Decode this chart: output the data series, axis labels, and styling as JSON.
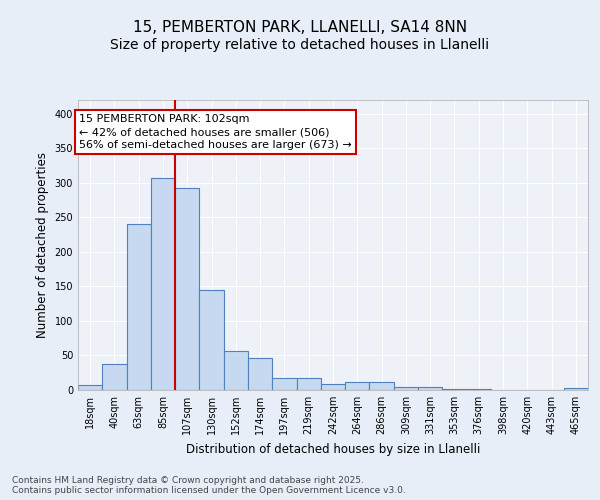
{
  "title1": "15, PEMBERTON PARK, LLANELLI, SA14 8NN",
  "title2": "Size of property relative to detached houses in Llanelli",
  "xlabel": "Distribution of detached houses by size in Llanelli",
  "ylabel": "Number of detached properties",
  "categories": [
    "18sqm",
    "40sqm",
    "63sqm",
    "85sqm",
    "107sqm",
    "130sqm",
    "152sqm",
    "174sqm",
    "197sqm",
    "219sqm",
    "242sqm",
    "264sqm",
    "286sqm",
    "309sqm",
    "331sqm",
    "353sqm",
    "376sqm",
    "398sqm",
    "420sqm",
    "443sqm",
    "465sqm"
  ],
  "values": [
    7,
    38,
    240,
    307,
    293,
    145,
    56,
    46,
    18,
    18,
    9,
    12,
    12,
    4,
    4,
    1,
    1,
    0,
    0,
    0,
    3
  ],
  "bar_color": "#c6d9f0",
  "bar_edge_color": "#4f81bd",
  "bar_linewidth": 0.8,
  "vline_index": 4,
  "vline_color": "#cc0000",
  "vline_linewidth": 1.5,
  "annotation_box_text": "15 PEMBERTON PARK: 102sqm\n← 42% of detached houses are smaller (506)\n56% of semi-detached houses are larger (673) →",
  "ylim": [
    0,
    420
  ],
  "yticks": [
    0,
    50,
    100,
    150,
    200,
    250,
    300,
    350,
    400
  ],
  "bg_color": "#e8eef7",
  "plot_bg_color": "#eef2f8",
  "footer_text": "Contains HM Land Registry data © Crown copyright and database right 2025.\nContains public sector information licensed under the Open Government Licence v3.0.",
  "title_fontsize": 11,
  "subtitle_fontsize": 10,
  "axis_label_fontsize": 8.5,
  "tick_fontsize": 7,
  "footer_fontsize": 6.5,
  "annotation_fontsize": 8
}
